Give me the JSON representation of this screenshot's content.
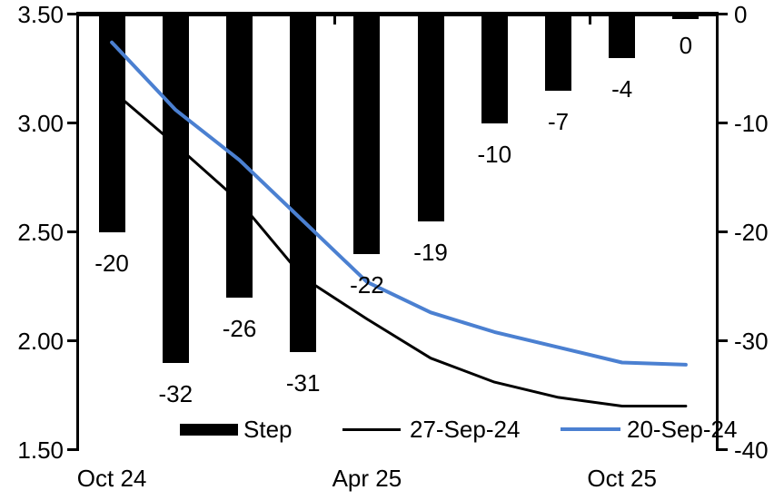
{
  "chart_data": {
    "type": "combo-bar-line",
    "bar_series": {
      "name": "Step",
      "axis": "right",
      "color": "#000000",
      "values": [
        -20,
        -32,
        -26,
        -31,
        -22,
        -19,
        -10,
        -7,
        -4,
        0
      ],
      "data_labels": [
        "-20",
        "-32",
        "-26",
        "-31",
        "-22",
        "-19",
        "-10",
        "-7",
        "-4",
        "0"
      ]
    },
    "line_series": [
      {
        "name": "27-Sep-24",
        "axis": "left",
        "color": "#000000",
        "stroke_width": 3,
        "values": [
          3.15,
          2.9,
          2.64,
          2.29,
          2.1,
          1.92,
          1.81,
          1.74,
          1.7,
          1.7
        ]
      },
      {
        "name": "20-Sep-24",
        "axis": "left",
        "color": "#4b80d1",
        "stroke_width": 4,
        "values": [
          3.37,
          3.06,
          2.83,
          2.55,
          2.27,
          2.13,
          2.04,
          1.97,
          1.9,
          1.89
        ]
      }
    ],
    "left_axis": {
      "tick_labels": [
        "3.50",
        "3.00",
        "2.50",
        "2.00",
        "1.50"
      ],
      "max": 3.5,
      "min": 1.5
    },
    "right_axis": {
      "tick_labels": [
        "0",
        "-10",
        "-20",
        "-30",
        "-40"
      ],
      "max": 0,
      "min": -40
    },
    "x_axis": {
      "labels": [
        "Oct 24",
        "Apr 25",
        "Oct 25"
      ],
      "label_category_index": [
        0,
        4,
        8
      ],
      "boundary_tick_categories": [
        4,
        8
      ]
    },
    "legend": {
      "bar_label": "Step",
      "line1_label": "27-Sep-24",
      "line2_label": "20-Sep-24"
    },
    "grid": "off",
    "legend_position": "bottom-inside"
  }
}
